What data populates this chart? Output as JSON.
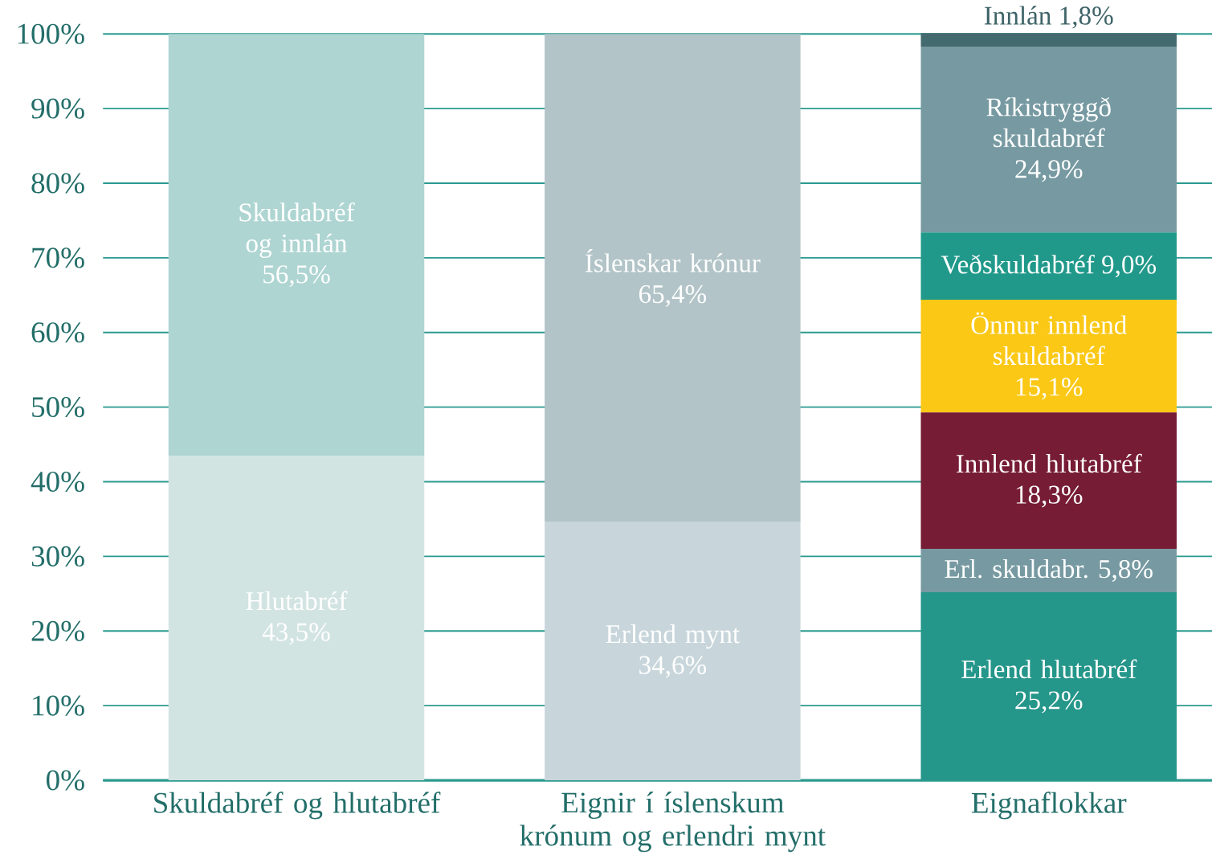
{
  "chart_data": {
    "type": "bar",
    "stacked": true,
    "grid": "y",
    "categories": [
      "Skuldabréf og hlutabréf",
      "Eignir í íslenskum krónum og erlendri mynt",
      "Eignaflokkar"
    ],
    "ylim": [
      0,
      100
    ],
    "yticks": [
      {
        "value": 0,
        "label": "0%"
      },
      {
        "value": 10,
        "label": "10%"
      },
      {
        "value": 20,
        "label": "20%"
      },
      {
        "value": 30,
        "label": "30%"
      },
      {
        "value": 40,
        "label": "40%"
      },
      {
        "value": 50,
        "label": "50%"
      },
      {
        "value": 60,
        "label": "60%"
      },
      {
        "value": 70,
        "label": "70%"
      },
      {
        "value": 80,
        "label": "80%"
      },
      {
        "value": 90,
        "label": "90%"
      },
      {
        "value": 100,
        "label": "100%"
      }
    ],
    "series": [
      {
        "name": "Hlutabréf",
        "color": "#d2e4e1",
        "values": [
          43.5,
          null,
          null
        ],
        "value_labels": [
          "43,5%",
          null,
          null
        ]
      },
      {
        "name": "Skuldabréf og innlán",
        "color": "#aed5d2",
        "values": [
          56.5,
          null,
          null
        ],
        "value_labels": [
          "56,5%",
          null,
          null
        ]
      },
      {
        "name": "Erlend mynt",
        "color": "#c8d6db",
        "values": [
          null,
          34.6,
          null
        ],
        "value_labels": [
          null,
          "34,6%",
          null
        ]
      },
      {
        "name": "Íslenskar krónur",
        "color": "#b2c4c7",
        "values": [
          null,
          65.4,
          null
        ],
        "value_labels": [
          null,
          "65,4%",
          null
        ]
      },
      {
        "name": "Erlend hlutabréf",
        "color": "#25968a",
        "values": [
          null,
          null,
          25.2
        ],
        "value_labels": [
          null,
          null,
          "25,2%"
        ]
      },
      {
        "name": "Erl. skuldabr.",
        "color": "#779aa2",
        "values": [
          null,
          null,
          5.8
        ],
        "value_labels": [
          null,
          null,
          "5,8%"
        ]
      },
      {
        "name": "Innlend hlutabréf",
        "color": "#761c35",
        "values": [
          null,
          null,
          18.3
        ],
        "value_labels": [
          null,
          null,
          "18,3%"
        ]
      },
      {
        "name": "Önnur innlend skuldabréf",
        "color": "#fbc816",
        "values": [
          null,
          null,
          15.1
        ],
        "value_labels": [
          null,
          null,
          "15,1%"
        ]
      },
      {
        "name": "Veðskuldabréf",
        "color": "#21998a",
        "values": [
          null,
          null,
          9.0
        ],
        "value_labels": [
          null,
          null,
          "9,0%"
        ]
      },
      {
        "name": "Ríkistryggð skuldabréf",
        "color": "#779aa2",
        "values": [
          null,
          null,
          24.9
        ],
        "value_labels": [
          null,
          null,
          "24,9%"
        ]
      },
      {
        "name": "Innlán",
        "color": "#436a6f",
        "values": [
          null,
          null,
          1.8
        ],
        "value_labels": [
          null,
          null,
          "1,8%"
        ]
      }
    ]
  }
}
